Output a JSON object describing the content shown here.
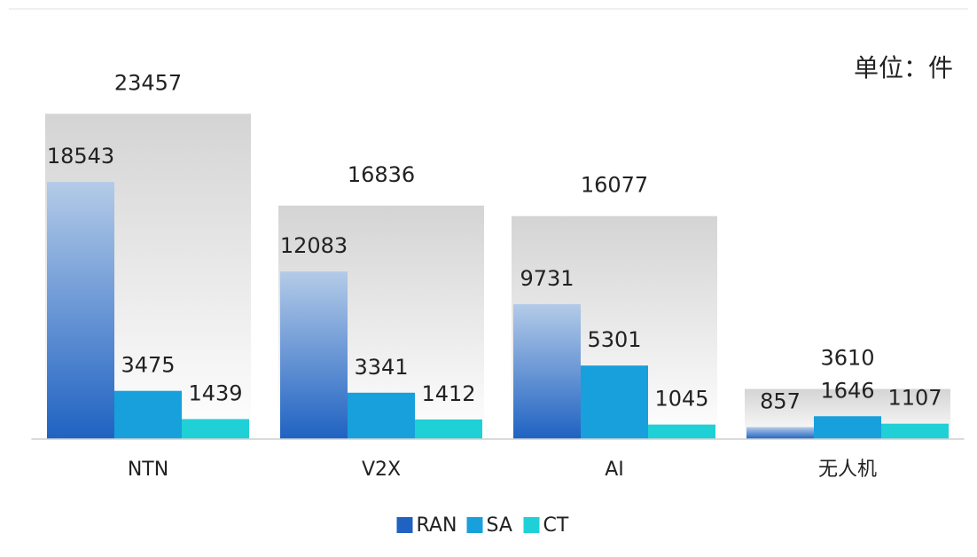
{
  "chart_data": {
    "type": "bar",
    "unit_note": "单位：件",
    "categories": [
      "NTN",
      "V2X",
      "AI",
      "无人机"
    ],
    "totals": [
      23457,
      16836,
      16077,
      3610
    ],
    "series": [
      {
        "name": "RAN",
        "color": "#1f62c2",
        "gradient": true,
        "values": [
          18543,
          12083,
          9731,
          857
        ]
      },
      {
        "name": "SA",
        "color": "#17a0dc",
        "values": [
          3475,
          3341,
          5301,
          1646
        ]
      },
      {
        "name": "CT",
        "color": "#1fd0d6",
        "values": [
          1439,
          1412,
          1045,
          1107
        ]
      }
    ],
    "ylim": [
      0,
      30000
    ],
    "legend": "bottom"
  }
}
